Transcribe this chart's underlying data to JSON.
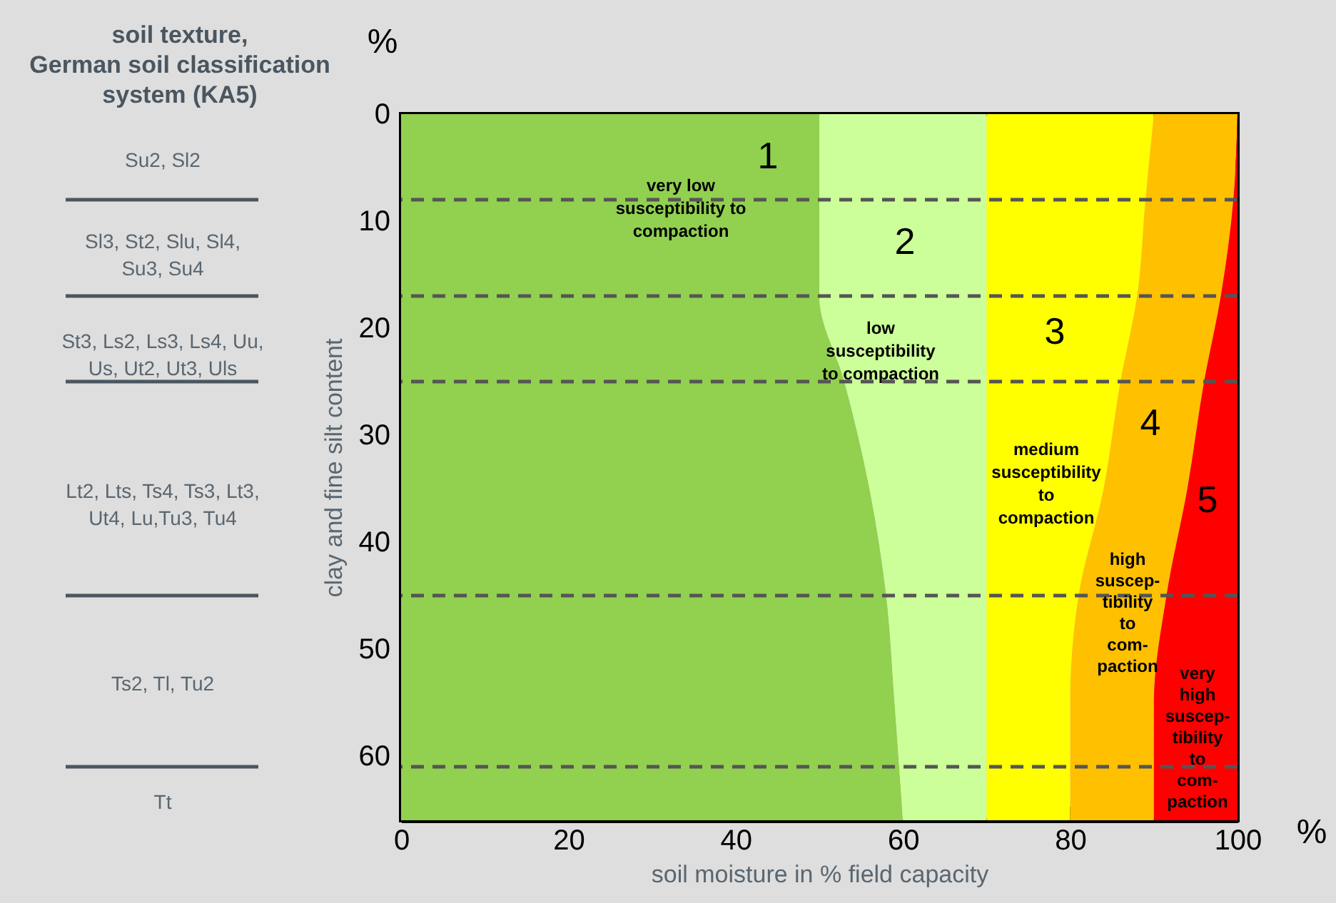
{
  "chart_data": {
    "type": "area",
    "orientation": "horizontal",
    "stacked": true,
    "xlabel": "soil moisture in % field capacity",
    "ylabel": "clay and fine silt content",
    "x": [
      0,
      8,
      17,
      25,
      35,
      45,
      55,
      66
    ],
    "series": [
      {
        "color": "#92d050",
        "values": [
          50,
          50,
          50,
          53,
          56,
          58,
          59,
          60
        ]
      },
      {
        "color": "#ccff99",
        "values": [
          20,
          20,
          20,
          17,
          14,
          12,
          11,
          10
        ]
      },
      {
        "color": "#ffff00",
        "values": [
          20,
          19,
          18,
          16,
          14,
          11,
          10,
          10
        ]
      },
      {
        "color": "#ffc000",
        "values": [
          10,
          10.5,
          10,
          10,
          10,
          10.5,
          10,
          10
        ]
      },
      {
        "color": "#ff0000",
        "values": [
          0,
          0.5,
          2,
          4,
          6,
          8.5,
          10,
          10
        ]
      }
    ],
    "xlim": [
      0,
      100
    ],
    "xticks": [
      0,
      20,
      40,
      60,
      80,
      100
    ],
    "ylim": [
      66,
      0
    ],
    "yticks": [
      0,
      10,
      20,
      30,
      40,
      50,
      60
    ],
    "ref_lines": [
      {
        "axis": "y",
        "value": 8,
        "line_style": "dashed",
        "color": "#555555"
      },
      {
        "axis": "y",
        "value": 17,
        "line_style": "dashed",
        "color": "#555555"
      },
      {
        "axis": "y",
        "value": 25,
        "line_style": "dashed",
        "color": "#555555"
      },
      {
        "axis": "y",
        "value": 45,
        "line_style": "dashed",
        "color": "#555555"
      },
      {
        "axis": "y",
        "value": 61,
        "line_style": "dashed",
        "color": "#555555"
      }
    ],
    "annotations": [
      "soil texture,\nGerman soil classification\nsystem (KA5)",
      "%",
      "%",
      "Su2, Sl2",
      "Sl3, St2, Slu, Sl4,\nSu3, Su4",
      "St3, Ls2, Ls3, Ls4, Uu,\nUs, Ut2, Ut3, Uls",
      "Lt2, Lts, Ts4, Ts3,  Lt3,\nUt4, Lu,Tu3, Tu4",
      "Ts2, Tl, Tu2",
      "Tt",
      "1",
      "2",
      "3",
      "4",
      "5",
      "very low\nsusceptibility to\ncompaction",
      "low\nsusceptibility\nto compaction",
      "medium\nsusceptibility\nto\ncompaction",
      "high\nsuscep-\ntibility\nto\ncom-\npaction",
      "very\nhigh\nsuscep-\ntibility\nto\ncom-\npaction"
    ]
  }
}
